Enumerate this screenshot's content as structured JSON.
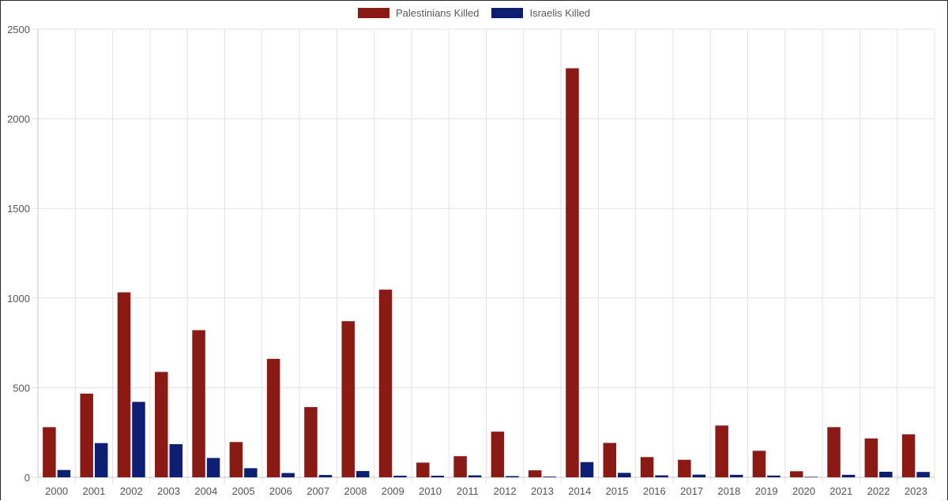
{
  "chart_data": {
    "type": "bar",
    "categories": [
      "2000",
      "2001",
      "2002",
      "2003",
      "2004",
      "2005",
      "2006",
      "2007",
      "2008",
      "2009",
      "2010",
      "2011",
      "2012",
      "2013",
      "2014",
      "2015",
      "2016",
      "2017",
      "2018",
      "2019",
      "2020",
      "2021",
      "2022",
      "2023"
    ],
    "series": [
      {
        "name": "Palestinians Killed",
        "color": "#8b1a14",
        "values": [
          280,
          467,
          1032,
          588,
          821,
          197,
          661,
          392,
          871,
          1047,
          82,
          118,
          255,
          39,
          2282,
          192,
          113,
          98,
          289,
          148,
          34,
          280,
          217,
          240
        ]
      },
      {
        "name": "Israelis Killed",
        "color": "#0d1f73",
        "values": [
          41,
          191,
          421,
          185,
          108,
          51,
          24,
          13,
          35,
          9,
          9,
          11,
          7,
          4,
          85,
          25,
          11,
          15,
          14,
          10,
          3,
          14,
          31,
          30
        ]
      }
    ],
    "y_ticks": [
      "0",
      "500",
      "1000",
      "1500",
      "2000",
      "2500"
    ],
    "ylim": [
      0,
      2500
    ],
    "grid": true,
    "legend_position": "top"
  }
}
